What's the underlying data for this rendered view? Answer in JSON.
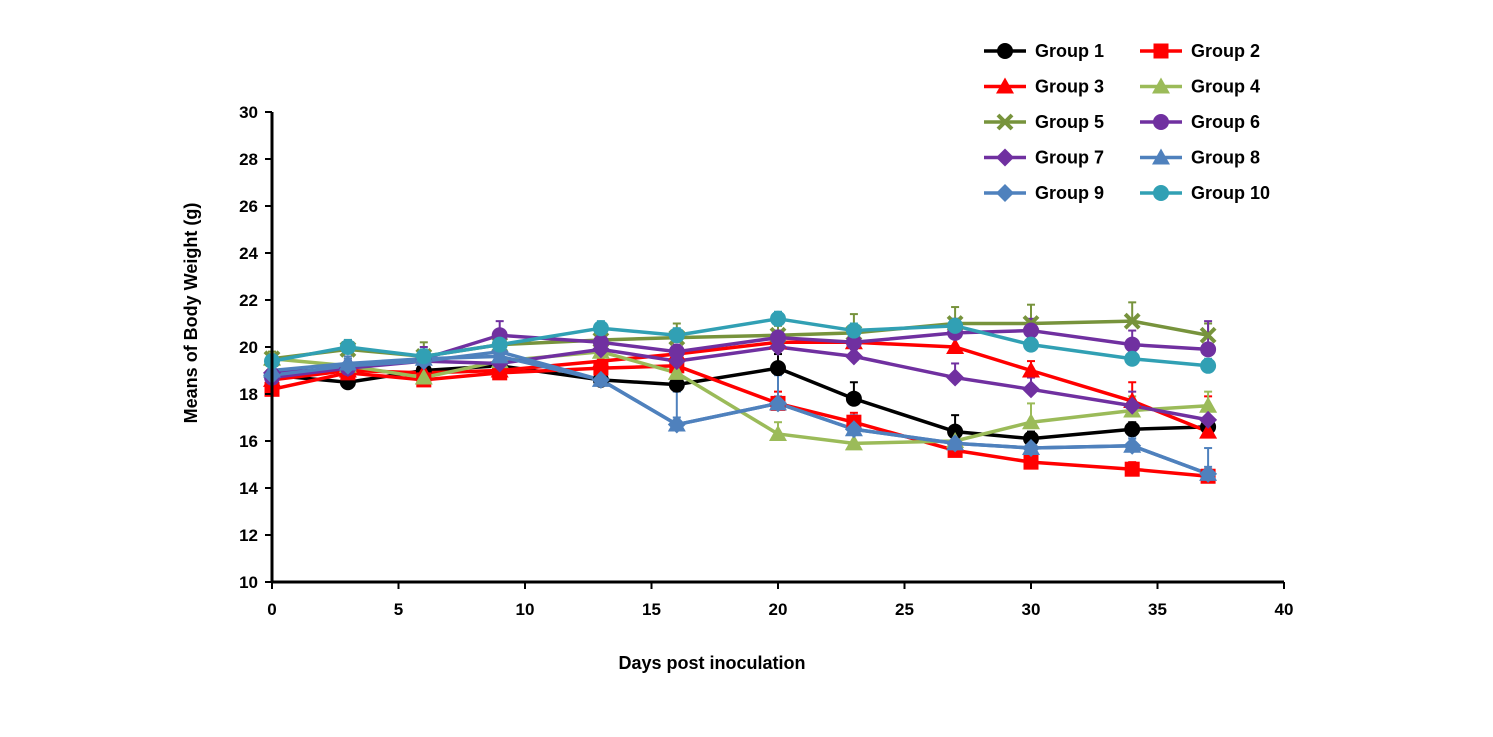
{
  "chart_data": {
    "type": "line",
    "title": "",
    "xlabel": "Days post inoculation",
    "ylabel": "Means of Body Weight (g)",
    "xlim": [
      0,
      40
    ],
    "ylim": [
      10,
      30
    ],
    "xticks": [
      "0",
      "5",
      "10",
      "15",
      "20",
      "25",
      "30",
      "35",
      "40"
    ],
    "yticks": [
      "10",
      "12",
      "14",
      "16",
      "18",
      "20",
      "22",
      "24",
      "26",
      "28",
      "30"
    ],
    "grid": false,
    "legend_position": "top-right",
    "x": [
      0,
      3,
      6,
      9,
      13,
      16,
      20,
      23,
      27,
      30,
      34,
      37
    ],
    "series": [
      {
        "name": "Group 1",
        "color": "#000000",
        "marker": "circle",
        "values": [
          18.8,
          18.5,
          19.0,
          19.2,
          18.6,
          18.4,
          19.1,
          17.8,
          16.4,
          16.1,
          16.5,
          16.6
        ],
        "errors": [
          0.3,
          0.3,
          0.3,
          0.3,
          0.3,
          0.4,
          0.6,
          0.7,
          0.7,
          0.3,
          0.3,
          0.3
        ]
      },
      {
        "name": "Group 2",
        "color": "#ff0000",
        "marker": "square",
        "values": [
          18.2,
          18.9,
          18.6,
          18.9,
          19.1,
          19.2,
          17.6,
          16.8,
          15.6,
          15.1,
          14.8,
          14.5
        ],
        "errors": [
          0.3,
          0.3,
          0.3,
          0.3,
          0.3,
          0.3,
          0.5,
          0.4,
          0.5,
          0.3,
          0.3,
          0.3
        ]
      },
      {
        "name": "Group 3",
        "color": "#ff0000",
        "marker": "triangle",
        "values": [
          18.6,
          19.0,
          18.9,
          19.0,
          19.4,
          19.7,
          20.2,
          20.2,
          20.0,
          19.0,
          17.7,
          16.4
        ],
        "errors": [
          0.3,
          0.3,
          0.3,
          0.3,
          0.3,
          0.3,
          0.4,
          0.4,
          0.5,
          0.4,
          0.8,
          1.5
        ]
      },
      {
        "name": "Group 4",
        "color": "#9bbb59",
        "marker": "triangle",
        "values": [
          19.5,
          19.2,
          18.7,
          19.4,
          19.8,
          18.9,
          16.3,
          15.9,
          16.0,
          16.8,
          17.3,
          17.5
        ],
        "errors": [
          0.3,
          0.3,
          0.3,
          0.3,
          0.3,
          0.4,
          0.5,
          0.5,
          0.5,
          0.8,
          0.6,
          0.6
        ]
      },
      {
        "name": "Group 5",
        "color": "#77933c",
        "marker": "x",
        "values": [
          19.5,
          19.9,
          19.6,
          20.1,
          20.3,
          20.4,
          20.5,
          20.6,
          21.0,
          21.0,
          21.1,
          20.5
        ],
        "errors": [
          0.3,
          0.4,
          0.6,
          0.4,
          0.4,
          0.6,
          0.4,
          0.8,
          0.7,
          0.8,
          0.8,
          0.5
        ]
      },
      {
        "name": "Group 6",
        "color": "#7030a0",
        "marker": "circle",
        "values": [
          18.7,
          19.1,
          19.5,
          20.5,
          20.2,
          19.8,
          20.4,
          20.2,
          20.6,
          20.7,
          20.1,
          19.9
        ],
        "errors": [
          0.3,
          0.3,
          0.5,
          0.6,
          0.3,
          0.3,
          0.3,
          0.3,
          0.6,
          0.5,
          0.6,
          1.2
        ]
      },
      {
        "name": "Group 7",
        "color": "#7030a0",
        "marker": "diamond",
        "values": [
          18.9,
          19.1,
          19.4,
          19.3,
          19.9,
          19.4,
          20.0,
          19.6,
          18.7,
          18.2,
          17.5,
          16.9
        ],
        "errors": [
          0.3,
          0.3,
          0.3,
          0.3,
          0.3,
          0.3,
          0.3,
          0.3,
          0.6,
          0.5,
          0.6,
          0.6
        ]
      },
      {
        "name": "Group 8",
        "color": "#4f81bd",
        "marker": "triangle",
        "values": [
          19.0,
          19.3,
          19.5,
          19.6,
          18.6,
          16.7,
          17.6,
          16.5,
          15.9,
          15.7,
          15.8,
          14.6
        ],
        "errors": [
          0.3,
          0.3,
          0.3,
          0.3,
          0.3,
          1.4,
          1.2,
          0.6,
          0.5,
          0.4,
          0.4,
          1.1
        ]
      },
      {
        "name": "Group 9",
        "color": "#4f81bd",
        "marker": "diamond",
        "values": [
          18.8,
          19.2,
          19.4,
          19.8,
          18.6,
          16.7,
          17.6,
          16.5,
          15.9,
          15.7,
          15.8,
          14.6
        ],
        "errors": [
          0.3,
          0.3,
          0.3,
          0.3,
          0.3,
          0.3,
          0.3,
          0.3,
          0.3,
          0.3,
          0.3,
          0.3
        ]
      },
      {
        "name": "Group 10",
        "color": "#31a0b4",
        "marker": "circle",
        "values": [
          19.4,
          20.0,
          19.6,
          20.1,
          20.8,
          20.5,
          21.2,
          20.7,
          20.9,
          20.1,
          19.5,
          19.2
        ],
        "errors": [
          0.3,
          0.3,
          0.3,
          0.3,
          0.3,
          0.3,
          0.3,
          0.3,
          0.3,
          0.3,
          0.3,
          0.3
        ]
      }
    ]
  }
}
